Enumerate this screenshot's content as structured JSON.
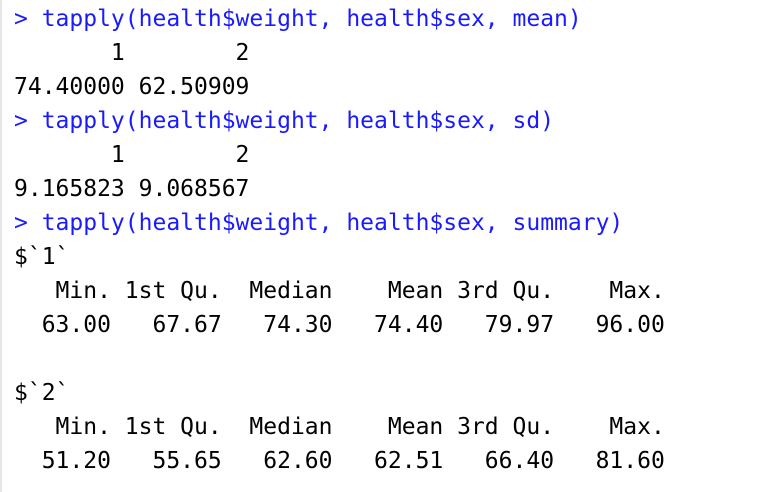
{
  "colors": {
    "command": "#1a1aff",
    "output": "#000000",
    "background": "#ffffff"
  },
  "console": {
    "lines": [
      {
        "type": "command",
        "text": "> tapply(health$weight, health$sex, mean)"
      },
      {
        "type": "output",
        "text": "       1        2 "
      },
      {
        "type": "output",
        "text": "74.40000 62.50909 "
      },
      {
        "type": "command",
        "text": "> tapply(health$weight, health$sex, sd)"
      },
      {
        "type": "output",
        "text": "       1        2 "
      },
      {
        "type": "output",
        "text": "9.165823 9.068567 "
      },
      {
        "type": "command",
        "text": "> tapply(health$weight, health$sex, summary)"
      },
      {
        "type": "output",
        "text": "$`1`"
      },
      {
        "type": "output",
        "text": "   Min. 1st Qu.  Median    Mean 3rd Qu.    Max. "
      },
      {
        "type": "output",
        "text": "  63.00   67.67   74.30   74.40   79.97   96.00 "
      },
      {
        "type": "output",
        "text": ""
      },
      {
        "type": "output",
        "text": "$`2`"
      },
      {
        "type": "output",
        "text": "   Min. 1st Qu.  Median    Mean 3rd Qu.    Max. "
      },
      {
        "type": "output",
        "text": "  51.20   55.65   62.60   62.51   66.40   81.60 "
      }
    ]
  }
}
